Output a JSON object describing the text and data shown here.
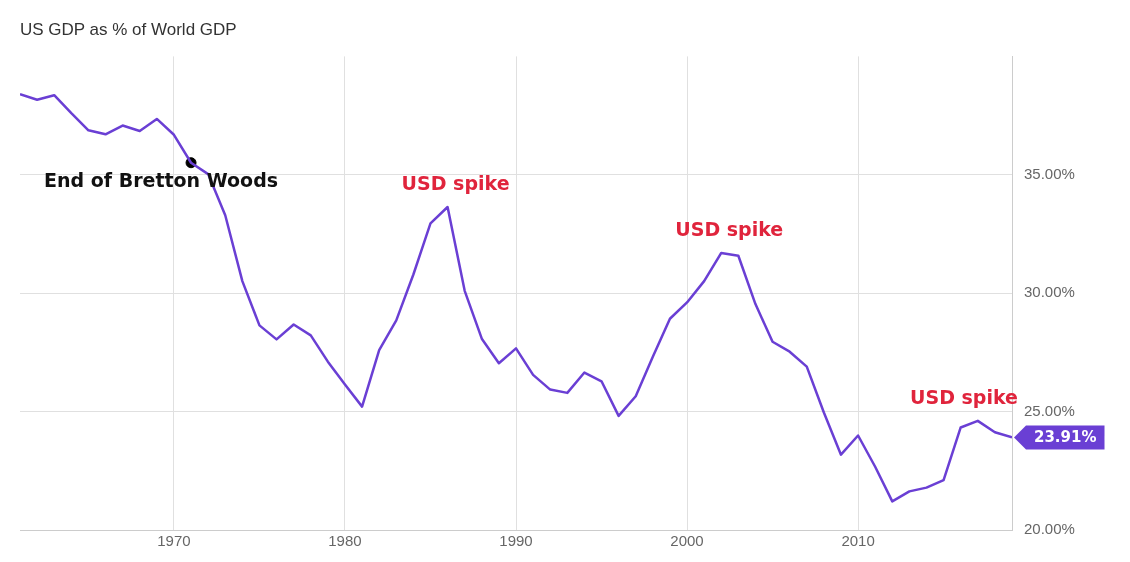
{
  "chart_data": {
    "type": "line",
    "title": "US GDP as % of World GDP",
    "x": [
      1961,
      1962,
      1963,
      1964,
      1965,
      1966,
      1967,
      1968,
      1969,
      1970,
      1971,
      1972,
      1973,
      1974,
      1975,
      1976,
      1977,
      1978,
      1979,
      1980,
      1981,
      1982,
      1983,
      1984,
      1985,
      1986,
      1987,
      1988,
      1989,
      1990,
      1991,
      1992,
      1993,
      1994,
      1995,
      1996,
      1997,
      1998,
      1999,
      2000,
      2001,
      2002,
      2003,
      2004,
      2005,
      2006,
      2007,
      2008,
      2009,
      2010,
      2011,
      2012,
      2013,
      2014,
      2015,
      2016,
      2017,
      2018,
      2019
    ],
    "series": [
      {
        "color": "#6a3fd4",
        "values": [
          38.4,
          38.17,
          38.36,
          37.6,
          36.88,
          36.71,
          37.08,
          36.85,
          37.36,
          36.69,
          35.51,
          35.03,
          33.29,
          30.51,
          28.64,
          28.05,
          28.68,
          28.22,
          27.11,
          26.14,
          25.21,
          27.6,
          28.85,
          30.79,
          32.95,
          33.64,
          30.1,
          28.08,
          27.04,
          27.67,
          26.55,
          25.93,
          25.79,
          26.65,
          26.28,
          24.82,
          25.65,
          27.32,
          28.92,
          29.61,
          30.51,
          31.7,
          31.58,
          29.54,
          27.95,
          27.53,
          26.9,
          24.96,
          23.18,
          23.99,
          22.67,
          21.21,
          21.63,
          21.79,
          22.11,
          24.33,
          24.61,
          24.13,
          23.91
        ],
        "value_labels": [
          null,
          null,
          null,
          null,
          null,
          null,
          null,
          null,
          null,
          null,
          null,
          null,
          null,
          null,
          null,
          null,
          null,
          null,
          null,
          null,
          null,
          null,
          null,
          null,
          null,
          null,
          null,
          null,
          null,
          null,
          null,
          null,
          null,
          null,
          null,
          null,
          null,
          null,
          null,
          null,
          null,
          null,
          null,
          null,
          null,
          null,
          null,
          null,
          null,
          null,
          null,
          null,
          null,
          null,
          null,
          null,
          null,
          null,
          "23.91%"
        ]
      },
      {
        "type": "scatter",
        "marker": "circle",
        "color": "#000000",
        "x": [
          1971
        ],
        "values": [
          35.51
        ]
      }
    ],
    "annotations": [
      {
        "text": "End of Bretton Woods",
        "x": 1971,
        "y": 35.51
      },
      {
        "text": "USD spike",
        "x": 1986,
        "y": 33.64
      },
      {
        "text": "USD spike",
        "x": 2002,
        "y": 31.7
      },
      {
        "text": "USD spike",
        "x": 2017,
        "y": 24.61
      }
    ],
    "xlim": [
      1961,
      2019
    ],
    "xticks": [
      1970,
      1980,
      1990,
      2000,
      2010
    ],
    "ylim": [
      20,
      40
    ],
    "yticks": [
      {
        "value": 20,
        "label": "20.00%"
      },
      {
        "value": 25,
        "label": "25.00%"
      },
      {
        "value": 30,
        "label": "30.00%"
      },
      {
        "value": 35,
        "label": "35.00%"
      }
    ],
    "grid": true,
    "legend": false,
    "line_style": "solid"
  }
}
